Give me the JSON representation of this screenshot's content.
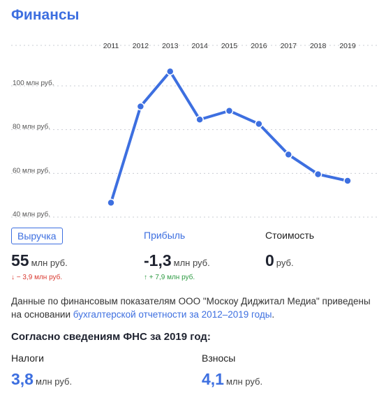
{
  "title": "Финансы",
  "chart_data": {
    "type": "line",
    "x": [
      "2011",
      "2012",
      "2013",
      "2014",
      "2015",
      "2016",
      "2017",
      "2018",
      "2019"
    ],
    "series": [
      {
        "values": [
          45,
          89,
          105,
          83,
          87,
          81,
          67,
          58,
          55
        ],
        "color": "#3d6fe0"
      }
    ],
    "y_ticks": [
      {
        "value": 100,
        "label": "100 млн руб."
      },
      {
        "value": 80,
        "label": "80 млн руб."
      },
      {
        "value": 60,
        "label": "60 млн руб."
      },
      {
        "value": 40,
        "label": "40 млн руб."
      }
    ],
    "ylim": [
      40,
      105
    ],
    "grid": true,
    "xaxis_position": "top"
  },
  "metrics": [
    {
      "label": "Выручка",
      "value": "55",
      "unit": "млн руб.",
      "delta": "↓ − 3,9 млн руб."
    },
    {
      "label": "Прибыль",
      "value": "-1,3",
      "unit": "млн руб.",
      "delta": "↑ + 7,9 млн руб."
    },
    {
      "label": "Стоимость",
      "value": "0",
      "unit": "руб."
    }
  ],
  "description": {
    "text_part1": "Данные по финансовым показателям ООО \"Москоу Диджитал Медиа\" приведены на основании ",
    "link_text": "бухгалтерской отчетности за 2012–2019 годы",
    "text_part2": "."
  },
  "fns": {
    "title": "Согласно сведениям ФНС за 2019 год:",
    "items": [
      {
        "label": "Налоги",
        "value": "3,8",
        "unit": "млн руб."
      },
      {
        "label": "Взносы",
        "value": "4,1",
        "unit": "млн руб."
      }
    ]
  },
  "colors": {
    "accent": "#3d6fe0",
    "negative": "#d9382f",
    "positive": "#2e9b43"
  }
}
